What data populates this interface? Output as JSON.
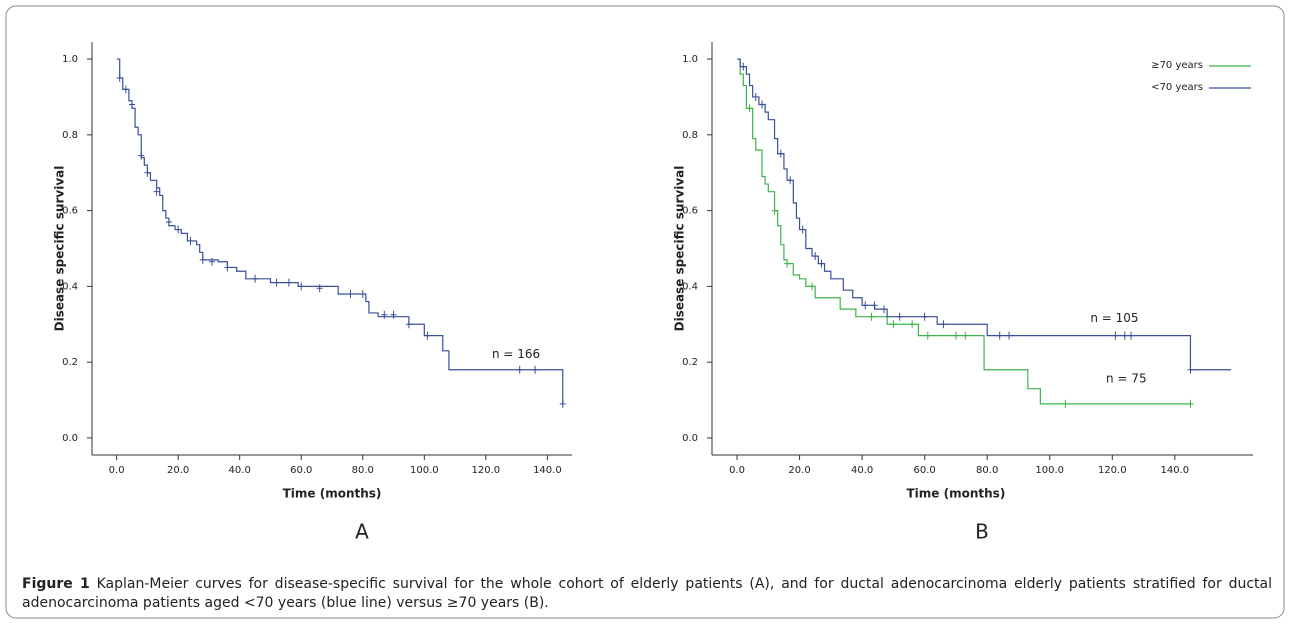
{
  "chart_data": [
    {
      "type": "step",
      "panel_label": "A",
      "xlabel": "Time (months)",
      "ylabel": "Disease specific survival",
      "annotations": [
        "n = 166"
      ],
      "xlim": [
        -8,
        148
      ],
      "ylim": [
        -0.045,
        1.045
      ],
      "xticks": [
        {
          "value": 0,
          "label": "0.0"
        },
        {
          "value": 20,
          "label": "20.0"
        },
        {
          "value": 40,
          "label": "40.0"
        },
        {
          "value": 60,
          "label": "60.0"
        },
        {
          "value": 80,
          "label": "80.0"
        },
        {
          "value": 100,
          "label": "100.0"
        },
        {
          "value": 120,
          "label": "120.0"
        },
        {
          "value": 140,
          "label": "140.0"
        }
      ],
      "yticks": [
        {
          "value": 0,
          "label": "0.0"
        },
        0.2,
        0.4,
        0.6,
        0.8,
        {
          "value": 1,
          "label": "1.0"
        }
      ],
      "series": [
        {
          "color": "#3a4f9a",
          "x": [
            0,
            1,
            2,
            4,
            5,
            6,
            7,
            8,
            9,
            10,
            11,
            13,
            14,
            15,
            16,
            17,
            19,
            21,
            23,
            26,
            27,
            28,
            33,
            36,
            39,
            42,
            50,
            59,
            72,
            81,
            82,
            85,
            95,
            100,
            106,
            108,
            145
          ],
          "values": [
            1.0,
            0.95,
            0.92,
            0.89,
            0.87,
            0.82,
            0.8,
            0.74,
            0.72,
            0.7,
            0.68,
            0.66,
            0.64,
            0.6,
            0.58,
            0.56,
            0.55,
            0.54,
            0.52,
            0.51,
            0.49,
            0.47,
            0.465,
            0.45,
            0.44,
            0.42,
            0.41,
            0.4,
            0.38,
            0.36,
            0.33,
            0.32,
            0.3,
            0.27,
            0.23,
            0.18,
            0.09
          ],
          "censor_x": [
            1,
            3,
            5,
            8,
            10,
            13,
            17,
            20,
            24,
            28,
            31,
            36,
            45,
            52,
            56,
            60,
            66,
            76,
            80,
            87,
            90,
            95,
            101,
            131,
            136,
            145
          ],
          "censor_values": [
            0.95,
            0.92,
            0.88,
            0.745,
            0.7,
            0.65,
            0.57,
            0.55,
            0.52,
            0.47,
            0.465,
            0.45,
            0.42,
            0.41,
            0.41,
            0.4,
            0.395,
            0.38,
            0.38,
            0.325,
            0.325,
            0.3,
            0.27,
            0.18,
            0.18,
            0.09
          ]
        }
      ]
    },
    {
      "type": "step",
      "panel_label": "B",
      "xlabel": "Time (months)",
      "ylabel": "Disease specific survival",
      "annotations": [
        "n = 105",
        "n = 75"
      ],
      "legend": "upper right",
      "xlim": [
        -8,
        165
      ],
      "ylim": [
        -0.045,
        1.045
      ],
      "xticks": [
        {
          "value": 0,
          "label": "0.0"
        },
        {
          "value": 20,
          "label": "20.0"
        },
        {
          "value": 40,
          "label": "40.0"
        },
        {
          "value": 60,
          "label": "60.0"
        },
        {
          "value": 80,
          "label": "80.0"
        },
        {
          "value": 100,
          "label": "100.0"
        },
        {
          "value": 120,
          "label": "120.0"
        },
        {
          "value": 140,
          "label": "140.0"
        }
      ],
      "yticks": [
        {
          "value": 0,
          "label": "0.0"
        },
        0.2,
        0.4,
        0.6,
        0.8,
        {
          "value": 1,
          "label": "1.0"
        }
      ],
      "series": [
        {
          "name": "≥70 years",
          "color": "#3cb44b",
          "x": [
            0,
            1,
            2,
            3,
            5,
            6,
            8,
            9,
            10,
            12,
            13,
            14,
            15,
            16,
            18,
            20,
            22,
            25,
            33,
            38,
            48,
            58,
            79,
            93,
            97,
            145
          ],
          "values": [
            1.0,
            0.96,
            0.93,
            0.87,
            0.79,
            0.76,
            0.69,
            0.67,
            0.65,
            0.6,
            0.56,
            0.51,
            0.47,
            0.46,
            0.43,
            0.42,
            0.4,
            0.37,
            0.34,
            0.32,
            0.3,
            0.27,
            0.18,
            0.13,
            0.09,
            0.09
          ],
          "censor_x": [
            4,
            12,
            16,
            24,
            43,
            50,
            56,
            61,
            70,
            73,
            105,
            145
          ],
          "censor_values": [
            0.87,
            0.6,
            0.46,
            0.4,
            0.32,
            0.3,
            0.3,
            0.27,
            0.27,
            0.27,
            0.09,
            0.09
          ]
        },
        {
          "name": "<70 years",
          "color": "#3a4f9a",
          "x": [
            0,
            1,
            3,
            4,
            5,
            7,
            9,
            10,
            12,
            13,
            15,
            16,
            18,
            19,
            20,
            22,
            24,
            26,
            28,
            30,
            34,
            37,
            40,
            44,
            48,
            64,
            80,
            145,
            158
          ],
          "values": [
            1.0,
            0.98,
            0.96,
            0.93,
            0.9,
            0.88,
            0.86,
            0.84,
            0.79,
            0.75,
            0.71,
            0.68,
            0.62,
            0.58,
            0.55,
            0.5,
            0.48,
            0.46,
            0.44,
            0.42,
            0.39,
            0.37,
            0.35,
            0.34,
            0.32,
            0.3,
            0.27,
            0.18,
            0.18
          ],
          "censor_x": [
            2,
            6,
            8,
            14,
            17,
            21,
            25,
            27,
            41,
            44,
            47,
            52,
            60,
            66,
            84,
            87,
            121,
            124,
            126,
            145
          ],
          "censor_values": [
            0.98,
            0.9,
            0.88,
            0.75,
            0.68,
            0.55,
            0.48,
            0.46,
            0.35,
            0.35,
            0.34,
            0.32,
            0.32,
            0.3,
            0.27,
            0.27,
            0.27,
            0.27,
            0.27,
            0.18
          ]
        }
      ]
    }
  ],
  "caption": {
    "label": "Figure 1",
    "text": "Kaplan-Meier curves for disease-specific survival for the whole cohort of elderly patients (A), and for ductal adenocarcinoma elderly patients stratified for ductal adenocarcinoma patients aged <70 years (blue line) versus ≥70 years (B)."
  }
}
